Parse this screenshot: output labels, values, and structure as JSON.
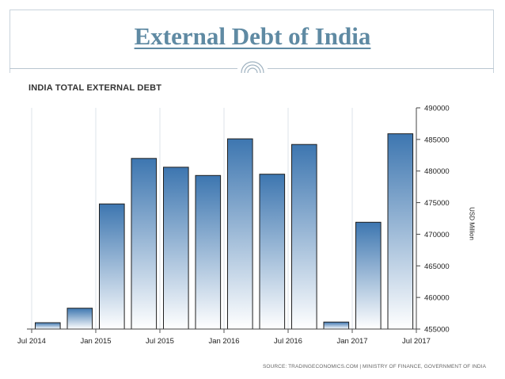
{
  "slide": {
    "title": "External Debt of India"
  },
  "chart_data": {
    "type": "bar",
    "title": "INDIA TOTAL EXTERNAL DEBT",
    "ylabel": "USD Million",
    "source": "SOURCE: TRADINGECONOMICS.COM | MINISTRY OF FINANCE, GOVERNMENT OF INDIA",
    "x_tick_labels": [
      "Jul 2014",
      "Jan 2015",
      "Jul 2015",
      "Jan 2016",
      "Jul 2016",
      "Jan 2017",
      "Jul 2017"
    ],
    "y_ticks": [
      455000,
      460000,
      465000,
      470000,
      475000,
      480000,
      485000,
      490000
    ],
    "ylim": [
      455000,
      490000
    ],
    "categories": [
      "Sep 2014",
      "Dec 2014",
      "Mar 2015",
      "Jun 2015",
      "Sep 2015",
      "Dec 2015",
      "Mar 2016",
      "Jun 2016",
      "Sep 2016",
      "Dec 2016",
      "Mar 2017",
      "Jun 2017"
    ],
    "values": [
      456000,
      458300,
      474800,
      482000,
      480600,
      479300,
      485100,
      479500,
      484200,
      456100,
      471900,
      485900
    ],
    "grid": "vertical",
    "bar_color": "#3d76b0",
    "bar_gradient_end": "#ffffff"
  }
}
